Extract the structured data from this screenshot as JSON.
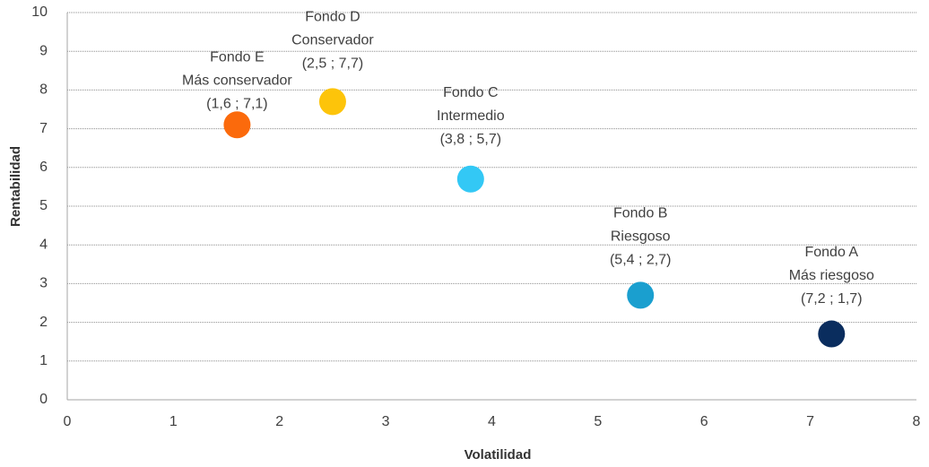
{
  "chart_data": {
    "type": "scatter",
    "x_label": "Volatilidad",
    "y_label": "Rentabilidad",
    "xlim": [
      0,
      8
    ],
    "xticks": [
      0,
      1,
      2,
      3,
      4,
      5,
      6,
      7,
      8
    ],
    "ylim": [
      0,
      10
    ],
    "yticks": [
      0,
      1,
      2,
      3,
      4,
      5,
      6,
      7,
      8,
      9,
      10
    ],
    "grid": true,
    "series": [
      {
        "name": "Fondo A",
        "description": "Más riesgoso",
        "color": "#0a2d5e",
        "x": [
          7.2
        ],
        "values": [
          1.7
        ],
        "value_labels": [
          "(7,2 ; 1,7)"
        ]
      },
      {
        "name": "Fondo B",
        "description": "Riesgoso",
        "color": "#1a9fcf",
        "x": [
          5.4
        ],
        "values": [
          2.7
        ],
        "value_labels": [
          "(5,4 ; 2,7)"
        ]
      },
      {
        "name": "Fondo C",
        "description": "Intermedio",
        "color": "#33c8f5",
        "x": [
          3.8
        ],
        "values": [
          5.7
        ],
        "value_labels": [
          "(3,8 ; 5,7)"
        ]
      },
      {
        "name": "Fondo D",
        "description": "Conservador",
        "color": "#fdc40a",
        "x": [
          2.5
        ],
        "values": [
          7.7
        ],
        "value_labels": [
          "(2,5 ; 7,7)"
        ]
      },
      {
        "name": "Fondo E",
        "description": "Más conservador",
        "color": "#fb6a0c",
        "x": [
          1.6
        ],
        "values": [
          7.1
        ],
        "value_labels": [
          "(1,6 ; 7,1)"
        ]
      }
    ]
  }
}
